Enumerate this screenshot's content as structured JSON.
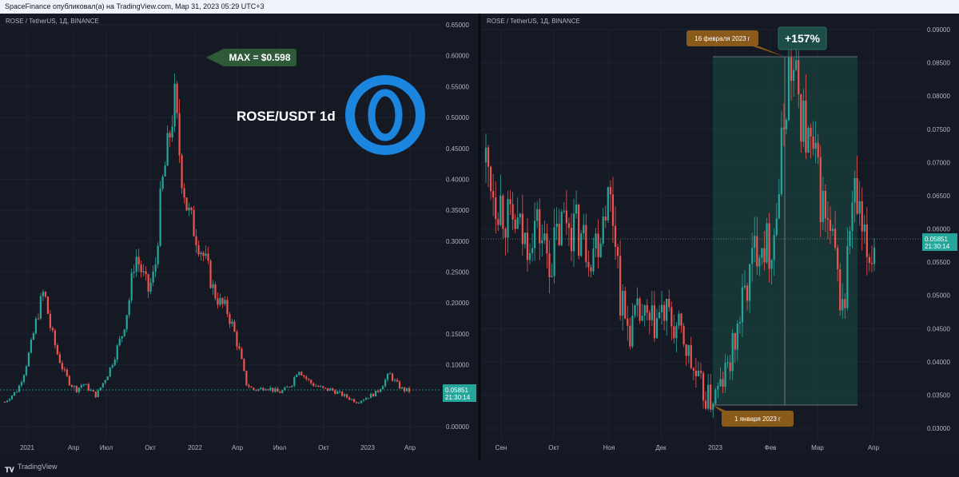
{
  "header": {
    "text": "SpaceFinance опубликовал(а) на TradingView.com, Мар 31, 2023 05:29 UTC+3"
  },
  "footer": {
    "brand": "TradingView",
    "logo": "tv-logo-icon"
  },
  "colors": {
    "bg": "#151924",
    "up": "#26a69a",
    "down": "#ef5350",
    "grid": "#1e2230",
    "axis_text": "#b2b5be",
    "range_fill": "#1b4d45",
    "label_brown": "#8a5a1a",
    "max_green": "#2f5a3a",
    "pct_box": "#1d4d47",
    "logo_blue": "#1a86e0"
  },
  "left": {
    "symbol": "ROSE / TetherUS, 1Д, BINANCE",
    "title": "ROSE/USDT 1d",
    "max_label": "MAX = $0.598",
    "price_badge": "0.05851",
    "timer": "21:30:14",
    "y_ticks": [
      "0.65000",
      "0.60000",
      "0.55000",
      "0.50000",
      "0.45000",
      "0.40000",
      "0.35000",
      "0.30000",
      "0.25000",
      "0.20000",
      "0.15000",
      "0.10000",
      "0.05000",
      "0.00000"
    ],
    "x_ticks": [
      "2021",
      "Апр",
      "Июл",
      "Окт",
      "2022",
      "Апр",
      "Июл",
      "Окт",
      "2023",
      "Апр"
    ]
  },
  "right": {
    "symbol": "ROSE / TetherUS, 1Д, BINANCE",
    "pct_label": "+157%",
    "peak_label": "16 февраля 2023 г",
    "low_label": "1 января 2023 г",
    "price_badge": "0.05851",
    "timer": "21:30:14",
    "y_ticks": [
      "0.09000",
      "0.08500",
      "0.08000",
      "0.07500",
      "0.07000",
      "0.06500",
      "0.06000",
      "0.05500",
      "0.05000",
      "0.04500",
      "0.04000",
      "0.03500",
      "0.03000"
    ],
    "x_ticks": [
      "Сен",
      "Окт",
      "Ноя",
      "Дек",
      "2023",
      "Фев",
      "Мар",
      "Апр"
    ]
  },
  "chart_data": [
    {
      "type": "candlestick",
      "title": "ROSE/USDT 1d",
      "ylim": [
        0,
        0.65
      ],
      "x_range": [
        "2020-12",
        "2023-04"
      ],
      "series": [
        {
          "name": "ROSE / TetherUS",
          "close": [
            0.04,
            0.05,
            0.06,
            0.09,
            0.13,
            0.18,
            0.22,
            0.16,
            0.12,
            0.09,
            0.07,
            0.06,
            0.07,
            0.06,
            0.05,
            0.07,
            0.09,
            0.12,
            0.15,
            0.2,
            0.28,
            0.25,
            0.22,
            0.25,
            0.38,
            0.45,
            0.53,
            0.42,
            0.35,
            0.32,
            0.29,
            0.26,
            0.22,
            0.2,
            0.19,
            0.16,
            0.12,
            0.07,
            0.06,
            0.06,
            0.065,
            0.06,
            0.055,
            0.06,
            0.07,
            0.095,
            0.08,
            0.07,
            0.065,
            0.06,
            0.06,
            0.055,
            0.05,
            0.045,
            0.04,
            0.045,
            0.05,
            0.055,
            0.07,
            0.085,
            0.07,
            0.06,
            0.058
          ],
          "max": 0.598
        }
      ]
    },
    {
      "type": "candlestick",
      "ylim": [
        0.03,
        0.09
      ],
      "x_range": [
        "2022-08",
        "2023-04"
      ],
      "series": [
        {
          "name": "ROSE / TetherUS",
          "close": [
            0.07,
            0.068,
            0.065,
            0.064,
            0.062,
            0.06,
            0.061,
            0.059,
            0.058,
            0.06,
            0.061,
            0.059,
            0.057,
            0.055,
            0.058,
            0.06,
            0.062,
            0.061,
            0.06,
            0.059,
            0.058,
            0.057,
            0.058,
            0.06,
            0.065,
            0.064,
            0.06,
            0.05,
            0.046,
            0.045,
            0.046,
            0.047,
            0.046,
            0.045,
            0.046,
            0.047,
            0.047,
            0.046,
            0.045,
            0.044,
            0.043,
            0.04,
            0.038,
            0.036,
            0.035,
            0.034,
            0.035,
            0.036,
            0.038,
            0.04,
            0.043,
            0.047,
            0.05,
            0.053,
            0.057,
            0.059,
            0.058,
            0.057,
            0.06,
            0.067,
            0.078,
            0.085,
            0.082,
            0.079,
            0.075,
            0.072,
            0.07,
            0.066,
            0.062,
            0.059,
            0.056,
            0.05,
            0.048,
            0.06,
            0.065,
            0.061,
            0.057,
            0.056,
            0.058
          ],
          "range_low": 0.0335,
          "range_high": 0.0858,
          "change_pct": 157
        }
      ]
    }
  ]
}
